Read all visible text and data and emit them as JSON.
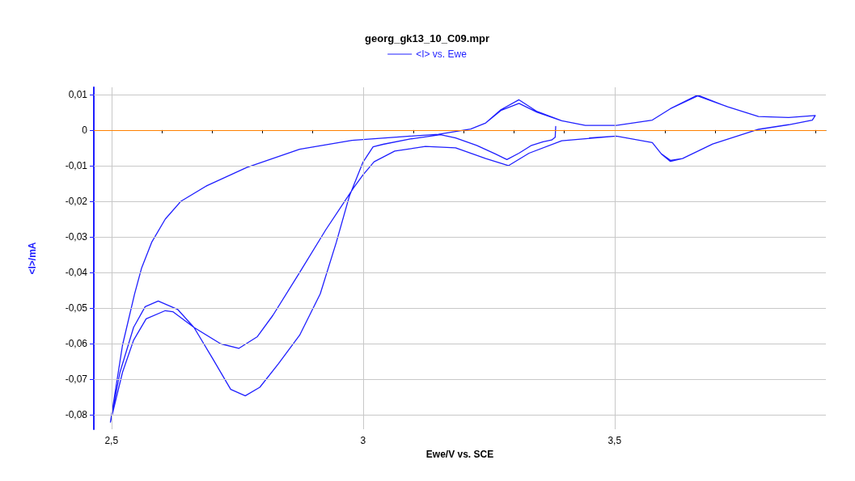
{
  "chart_data": {
    "type": "line",
    "title": "georg_gk13_10_C09.mpr",
    "xlabel": "Ewe/V vs. SCE",
    "ylabel": "<I>/mA",
    "legend": "top",
    "grid": true,
    "marker": "none",
    "line_style": "solid",
    "xlim": [
      2.465,
      3.92
    ],
    "ylim": [
      -0.084,
      0.012
    ],
    "xticks": [
      {
        "value": 2.5,
        "label": "2,5"
      },
      {
        "value": 2.6,
        "label": null
      },
      {
        "value": 2.7,
        "label": null
      },
      {
        "value": 2.8,
        "label": null
      },
      {
        "value": 2.9,
        "label": null
      },
      3,
      {
        "value": 3.1,
        "label": null
      },
      {
        "value": 3.2,
        "label": null
      },
      {
        "value": 3.3,
        "label": null
      },
      {
        "value": 3.4,
        "label": null
      },
      {
        "value": 3.5,
        "label": "3,5"
      },
      {
        "value": 3.6,
        "label": null
      },
      {
        "value": 3.7,
        "label": null
      },
      {
        "value": 3.8,
        "label": null
      },
      {
        "value": 3.9,
        "label": null
      }
    ],
    "yticks": [
      {
        "value": -0.08,
        "label": "-0,08"
      },
      {
        "value": -0.07,
        "label": "-0,07"
      },
      {
        "value": -0.06,
        "label": "-0,06"
      },
      {
        "value": -0.05,
        "label": "-0,05"
      },
      {
        "value": -0.04,
        "label": "-0,04"
      },
      {
        "value": -0.03,
        "label": "-0,03"
      },
      {
        "value": -0.02,
        "label": "-0,02"
      },
      {
        "value": -0.01,
        "label": "-0,01"
      },
      0,
      {
        "value": 0.01,
        "label": "0,01"
      }
    ],
    "ref_lines": [
      {
        "axis": "y",
        "value": 0,
        "color": "#ff8000"
      }
    ],
    "series": [
      {
        "name": "<I> vs. Ewe",
        "color": "#1f1fff",
        "x": [
          3.383,
          3.382,
          3.375,
          3.358,
          3.335,
          3.31,
          3.286,
          3.263,
          3.226,
          3.184,
          3.154,
          3.094,
          3.04,
          3.02,
          3.0,
          2.973,
          2.947,
          2.915,
          2.874,
          2.832,
          2.795,
          2.766,
          2.737,
          2.701,
          2.664,
          2.632,
          2.593,
          2.567,
          2.544,
          2.517,
          2.498,
          2.522,
          2.546,
          2.56,
          2.58,
          2.607,
          2.638,
          2.69,
          2.769,
          2.874,
          2.978,
          3.083,
          3.15,
          3.214,
          3.244,
          3.274,
          3.31,
          3.346,
          3.395,
          3.442,
          3.503,
          3.575,
          3.611,
          3.665,
          3.725,
          3.786,
          3.846,
          3.899,
          3.893,
          3.846,
          3.786,
          3.695,
          3.635,
          3.611,
          3.593,
          3.575,
          3.503,
          3.395,
          3.33,
          3.289,
          3.244,
          3.184,
          3.124,
          3.063,
          3.022,
          3.0,
          2.981,
          2.926,
          2.874,
          2.821,
          2.79,
          2.753,
          2.717,
          2.664,
          2.622,
          2.607,
          2.569,
          2.544,
          2.522,
          2.498,
          2.522,
          2.546,
          2.56,
          2.58,
          2.607,
          2.638,
          2.69,
          2.769,
          2.874,
          2.978,
          3.083,
          3.15,
          3.214,
          3.244,
          3.274,
          3.31,
          3.346,
          3.395,
          3.442,
          3.503,
          3.575,
          3.611,
          3.665,
          3.725,
          3.786,
          3.846,
          3.899,
          3.893,
          3.846,
          3.786,
          3.695,
          3.635,
          3.611,
          3.593,
          3.575,
          3.503,
          3.45
        ],
        "values": [
          0.001,
          -0.002,
          -0.0028,
          -0.0033,
          -0.0043,
          -0.0065,
          -0.0083,
          -0.0067,
          -0.0043,
          -0.0022,
          -0.0013,
          -0.0025,
          -0.004,
          -0.0047,
          -0.009,
          -0.0185,
          -0.0315,
          -0.046,
          -0.0576,
          -0.0656,
          -0.0722,
          -0.0746,
          -0.0728,
          -0.0641,
          -0.0554,
          -0.0504,
          -0.048,
          -0.0496,
          -0.0554,
          -0.068,
          -0.082,
          -0.0604,
          -0.046,
          -0.0387,
          -0.0315,
          -0.025,
          -0.02,
          -0.0156,
          -0.0105,
          -0.0054,
          -0.0029,
          -0.0018,
          -0.0012,
          0.0003,
          0.002,
          0.0057,
          0.0085,
          0.0052,
          0.0026,
          0.0013,
          0.0013,
          0.0028,
          0.006,
          0.0098,
          0.0065,
          0.0038,
          0.0035,
          0.0041,
          0.0028,
          0.0015,
          0.0002,
          -0.0039,
          -0.008,
          -0.0085,
          -0.0067,
          -0.0035,
          -0.0017,
          -0.003,
          -0.0065,
          -0.01,
          -0.008,
          -0.005,
          -0.0046,
          -0.0059,
          -0.0089,
          -0.0126,
          -0.0163,
          -0.028,
          -0.04,
          -0.052,
          -0.058,
          -0.0613,
          -0.06,
          -0.0554,
          -0.051,
          -0.0507,
          -0.053,
          -0.059,
          -0.068,
          -0.082,
          -0.0604,
          -0.046,
          -0.0387,
          -0.0315,
          -0.025,
          -0.02,
          -0.0156,
          -0.0105,
          -0.0054,
          -0.0029,
          -0.0018,
          -0.0012,
          0.0003,
          0.002,
          0.0055,
          0.0075,
          0.005,
          0.0026,
          0.0013,
          0.0013,
          0.0028,
          0.006,
          0.0096,
          0.0065,
          0.0038,
          0.0035,
          0.0041,
          0.0028,
          0.0015,
          0.0002,
          -0.0039,
          -0.008,
          -0.0088,
          -0.0067,
          -0.0035,
          -0.0017,
          -0.0022
        ]
      }
    ]
  }
}
